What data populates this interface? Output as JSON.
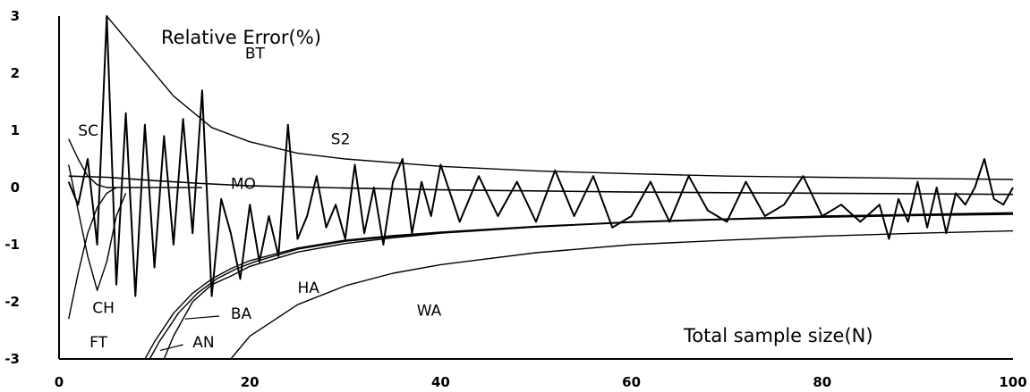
{
  "chart_data": {
    "type": "line",
    "ylabel": "Relative Error(%)",
    "xlabel": "Total sample size(N)",
    "xlim": [
      0,
      100
    ],
    "ylim": [
      -3,
      3
    ],
    "x_ticks": [
      0,
      20,
      40,
      60,
      80,
      100
    ],
    "y_ticks": [
      3,
      2,
      1,
      0,
      -1,
      -2,
      -3
    ],
    "grid": false,
    "legend": "none",
    "series": [
      {
        "name": "BT",
        "x": [
          5,
          8,
          12,
          16,
          20,
          25,
          30,
          40,
          50,
          60,
          70,
          80,
          90,
          100
        ],
        "values": [
          3.1,
          2.4,
          1.6,
          1.05,
          0.8,
          0.6,
          0.5,
          0.37,
          0.29,
          0.24,
          0.2,
          0.18,
          0.16,
          0.14
        ]
      },
      {
        "name": "S2",
        "x": [
          1,
          2,
          3,
          4,
          5,
          6,
          7,
          8,
          9,
          10,
          11,
          12,
          13,
          14,
          15,
          16,
          17,
          18,
          19,
          20,
          21,
          22,
          23,
          24,
          25,
          26,
          27,
          28,
          29,
          30,
          31,
          32,
          33,
          34,
          35,
          36,
          37,
          38,
          39,
          40,
          42,
          44,
          46,
          48,
          50,
          52,
          54,
          56,
          58,
          60,
          62,
          64,
          66,
          68,
          70,
          72,
          74,
          76,
          78,
          80,
          82,
          84,
          86,
          87,
          88,
          89,
          90,
          91,
          92,
          93,
          94,
          95,
          96,
          97,
          98,
          99,
          100
        ],
        "values": [
          0.1,
          -0.3,
          0.5,
          -1.0,
          3.1,
          -1.7,
          1.3,
          -1.9,
          1.1,
          -1.4,
          0.9,
          -1.0,
          1.2,
          -0.8,
          1.7,
          -1.9,
          -0.2,
          -0.8,
          -1.6,
          -0.3,
          -1.3,
          -0.5,
          -1.2,
          1.1,
          -0.9,
          -0.5,
          0.2,
          -0.7,
          -0.3,
          -0.9,
          0.4,
          -0.8,
          0.0,
          -1.0,
          0.1,
          0.5,
          -0.8,
          0.1,
          -0.5,
          0.4,
          -0.6,
          0.2,
          -0.5,
          0.1,
          -0.6,
          0.3,
          -0.5,
          0.2,
          -0.7,
          -0.5,
          0.1,
          -0.6,
          0.2,
          -0.4,
          -0.6,
          0.1,
          -0.5,
          -0.3,
          0.2,
          -0.5,
          -0.3,
          -0.6,
          -0.3,
          -0.9,
          -0.2,
          -0.6,
          0.1,
          -0.7,
          0.0,
          -0.8,
          -0.1,
          -0.3,
          0.0,
          0.5,
          -0.2,
          -0.3,
          0.0
        ]
      },
      {
        "name": "SC",
        "x": [
          1,
          2,
          3,
          4,
          5,
          6,
          8,
          10,
          12,
          15
        ],
        "values": [
          0.85,
          0.5,
          0.2,
          0.05,
          0.0,
          0.0,
          0.0,
          0.0,
          0.0,
          0.0
        ]
      },
      {
        "name": "MO",
        "x": [
          1,
          5,
          10,
          15,
          20,
          30,
          40,
          50,
          60,
          70,
          80,
          90,
          100
        ],
        "values": [
          0.2,
          0.18,
          0.12,
          0.07,
          0.03,
          -0.01,
          -0.04,
          -0.06,
          -0.08,
          -0.09,
          -0.1,
          -0.11,
          -0.12
        ]
      },
      {
        "name": "CH",
        "x": [
          1,
          2,
          3,
          4,
          5,
          6,
          7
        ],
        "values": [
          0.4,
          -0.4,
          -1.2,
          -1.8,
          -1.3,
          -0.5,
          -0.1
        ]
      },
      {
        "name": "FT",
        "x": [
          1,
          2,
          3,
          4,
          5,
          6
        ],
        "values": [
          -2.3,
          -1.5,
          -0.8,
          -0.35,
          -0.1,
          0.0
        ]
      },
      {
        "name": "HA",
        "x": [
          11,
          12,
          14,
          16,
          18,
          20,
          25,
          30,
          35,
          40,
          50,
          60,
          70,
          80,
          90,
          100
        ],
        "values": [
          -3.0,
          -2.6,
          -2.0,
          -1.7,
          -1.55,
          -1.38,
          -1.13,
          -0.98,
          -0.88,
          -0.8,
          -0.69,
          -0.6,
          -0.55,
          -0.5,
          -0.47,
          -0.44
        ]
      },
      {
        "name": "BA",
        "x": [
          9,
          10,
          12,
          14,
          16,
          18,
          20,
          25,
          30,
          35,
          40,
          50,
          60,
          70,
          80,
          90,
          100
        ],
        "values": [
          -3.0,
          -2.7,
          -2.2,
          -1.85,
          -1.6,
          -1.42,
          -1.28,
          -1.06,
          -0.92,
          -0.84,
          -0.78,
          -0.68,
          -0.6,
          -0.55,
          -0.51,
          -0.48,
          -0.46
        ]
      },
      {
        "name": "AN",
        "x": [
          9.5,
          10.5,
          12.5,
          14.5,
          16.5,
          18.5,
          20.5,
          25,
          30,
          35,
          40,
          50,
          60,
          70,
          80,
          90,
          100
        ],
        "values": [
          -3.0,
          -2.7,
          -2.2,
          -1.85,
          -1.6,
          -1.43,
          -1.3,
          -1.08,
          -0.94,
          -0.86,
          -0.79,
          -0.69,
          -0.61,
          -0.56,
          -0.52,
          -0.49,
          -0.47
        ]
      },
      {
        "name": "WA",
        "x": [
          18,
          20,
          25,
          30,
          35,
          40,
          50,
          60,
          70,
          80,
          90,
          100
        ],
        "values": [
          -3.0,
          -2.6,
          -2.05,
          -1.72,
          -1.5,
          -1.35,
          -1.14,
          -1.0,
          -0.92,
          -0.85,
          -0.8,
          -0.76
        ]
      }
    ],
    "annotations": [
      "BT",
      "S2",
      "SC",
      "MO",
      "CH",
      "FT",
      "HA",
      "BA",
      "AN",
      "WA"
    ]
  }
}
